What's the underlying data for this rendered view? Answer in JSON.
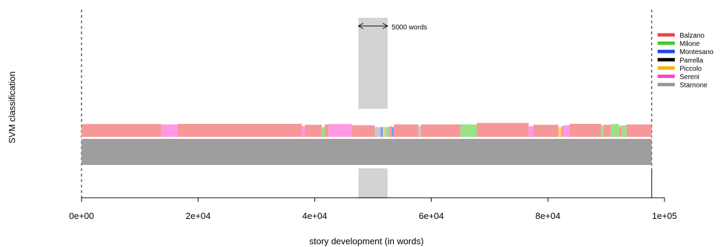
{
  "chart_data": {
    "type": "bar",
    "title": "",
    "xlabel": "story development (in words)",
    "ylabel": "SVM classification",
    "xlim": [
      0,
      100000
    ],
    "x_ticks": [
      0,
      20000,
      40000,
      60000,
      80000,
      100000
    ],
    "x_tick_labels": [
      "0e+00",
      "2e+04",
      "4e+04",
      "6e+04",
      "8e+04",
      "1e+05"
    ],
    "text_length_words": 97800,
    "window": {
      "label": "5000 words",
      "start": 47500,
      "end": 52500
    },
    "legend_position": "top-right",
    "legend": [
      {
        "name": "Balzano",
        "color": "#ee4444"
      },
      {
        "name": "Milone",
        "color": "#44cc22"
      },
      {
        "name": "Montesano",
        "color": "#2244ee"
      },
      {
        "name": "Parrella",
        "color": "#000000"
      },
      {
        "name": "Piccolo",
        "color": "#ffb000"
      },
      {
        "name": "Sereni",
        "color": "#ff44cc"
      },
      {
        "name": "Starnone",
        "color": "#999999"
      }
    ],
    "top_segments": [
      {
        "author": "Balzano",
        "start": 0,
        "end": 13700,
        "score": 0.72
      },
      {
        "author": "Sereni",
        "start": 13700,
        "end": 16500,
        "score": 0.7
      },
      {
        "author": "Balzano",
        "start": 16500,
        "end": 37800,
        "score": 0.73
      },
      {
        "author": "Sereni",
        "start": 37800,
        "end": 38300,
        "score": 0.6
      },
      {
        "author": "Balzano",
        "start": 38300,
        "end": 41200,
        "score": 0.68
      },
      {
        "author": "Milone",
        "start": 41200,
        "end": 41700,
        "score": 0.55
      },
      {
        "author": "Balzano",
        "start": 41700,
        "end": 42400,
        "score": 0.7
      },
      {
        "author": "Sereni",
        "start": 42400,
        "end": 46400,
        "score": 0.72
      },
      {
        "author": "Balzano",
        "start": 46400,
        "end": 50300,
        "score": 0.65
      },
      {
        "author": "Starnone",
        "start": 50300,
        "end": 51300,
        "score": 0.55
      },
      {
        "author": "Montesano",
        "start": 51300,
        "end": 51700,
        "score": 0.55
      },
      {
        "author": "Piccolo",
        "start": 51700,
        "end": 52000,
        "score": 0.55
      },
      {
        "author": "Starnone",
        "start": 52000,
        "end": 52300,
        "score": 0.55
      },
      {
        "author": "Milone",
        "start": 52300,
        "end": 52800,
        "score": 0.55
      },
      {
        "author": "Balzano",
        "start": 52800,
        "end": 53200,
        "score": 0.6
      },
      {
        "author": "Montesano",
        "start": 53200,
        "end": 53600,
        "score": 0.55
      },
      {
        "author": "Balzano",
        "start": 53600,
        "end": 57800,
        "score": 0.7
      },
      {
        "author": "Starnone",
        "start": 57800,
        "end": 58200,
        "score": 0.6
      },
      {
        "author": "Balzano",
        "start": 58200,
        "end": 65000,
        "score": 0.7
      },
      {
        "author": "Milone",
        "start": 65000,
        "end": 67800,
        "score": 0.7
      },
      {
        "author": "Balzano",
        "start": 67800,
        "end": 76700,
        "score": 0.78
      },
      {
        "author": "Sereni",
        "start": 76700,
        "end": 77500,
        "score": 0.6
      },
      {
        "author": "Balzano",
        "start": 77500,
        "end": 81800,
        "score": 0.68
      },
      {
        "author": "Piccolo",
        "start": 81800,
        "end": 82300,
        "score": 0.55
      },
      {
        "author": "Balzano",
        "start": 82300,
        "end": 82700,
        "score": 0.6
      },
      {
        "author": "Sereni",
        "start": 82700,
        "end": 83700,
        "score": 0.65
      },
      {
        "author": "Balzano",
        "start": 83700,
        "end": 89100,
        "score": 0.73
      },
      {
        "author": "Milone",
        "start": 89100,
        "end": 89600,
        "score": 0.65
      },
      {
        "author": "Balzano",
        "start": 89600,
        "end": 90800,
        "score": 0.68
      },
      {
        "author": "Milone",
        "start": 90800,
        "end": 92200,
        "score": 0.72
      },
      {
        "author": "Balzano",
        "start": 92200,
        "end": 92600,
        "score": 0.6
      },
      {
        "author": "Milone",
        "start": 92600,
        "end": 93500,
        "score": 0.65
      },
      {
        "author": "Balzano",
        "start": 93500,
        "end": 97800,
        "score": 0.7
      }
    ],
    "bottom_band": {
      "author": "Starnone",
      "start": 0,
      "end": 97800
    }
  }
}
